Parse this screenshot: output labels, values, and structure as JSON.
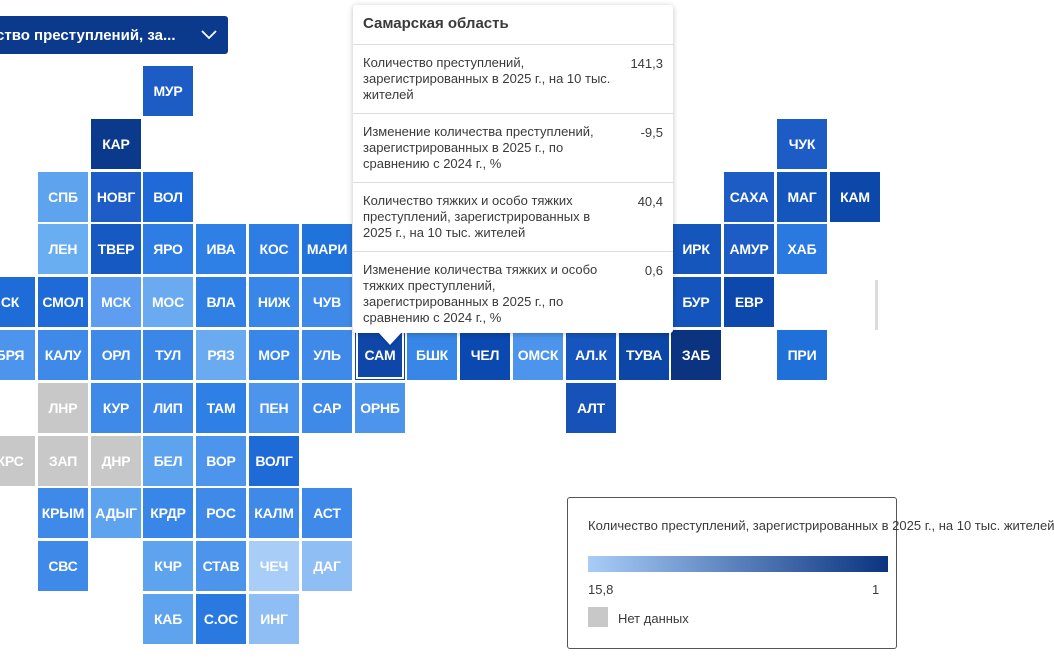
{
  "dropdown": {
    "label": "ство преступлений, за...",
    "icon": "chevron-down-icon"
  },
  "tooltip": {
    "title": "Самарская область",
    "rows": [
      {
        "label": "Количество преступлений, зарегистрированных в 2025 г., на 10 тыс. жителей",
        "value": "141,3"
      },
      {
        "label": "Изменение количества преступлений, зарегистрированных в 2025 г., по сравнению с 2024 г., %",
        "value": "-9,5"
      },
      {
        "label": "Количество тяжких и особо тяжких преступлений, зарегистрированных в 2025 г., на 10 тыс. жителей",
        "value": "40,4"
      },
      {
        "label": "Изменение количества тяжких и особо тяжких преступлений, зарегистрированных в 2025 г., по сравнению с 2024 г., %",
        "value": "0,6"
      }
    ]
  },
  "legend": {
    "title": "Количество преступлений, зарегистрированных в 2025 г., на 10 тыс. жителей",
    "min": "15,8",
    "max": "1",
    "no_data": "Нет данных",
    "colors": {
      "low": "#a8cdf7",
      "high": "#0b3380",
      "no_data": "#c8c8c8"
    }
  },
  "map": {
    "selected": "САМ",
    "regions": [
      {
        "code": "МУР",
        "col": 3,
        "row": 0,
        "color": "#1d5cc4"
      },
      {
        "code": "КАР",
        "col": 2,
        "row": 1,
        "color": "#0b3a8c"
      },
      {
        "code": "ЧУК",
        "col": 15,
        "row": 1,
        "color": "#1d5cc4"
      },
      {
        "code": "СПБ",
        "col": 1,
        "row": 2,
        "color": "#5ea3ee"
      },
      {
        "code": "НОВГ",
        "col": 2,
        "row": 2,
        "color": "#1e5dc7"
      },
      {
        "code": "ВОЛ",
        "col": 3,
        "row": 2,
        "color": "#1d6ad8"
      },
      {
        "code": "САХА",
        "col": 14,
        "row": 2,
        "color": "#1d5cc4"
      },
      {
        "code": "МАГ",
        "col": 15,
        "row": 2,
        "color": "#1556bd"
      },
      {
        "code": "КАМ",
        "col": 16,
        "row": 2,
        "color": "#0c48aa"
      },
      {
        "code": "ЛЕН",
        "col": 1,
        "row": 3,
        "color": "#6aaef2"
      },
      {
        "code": "ТВЕР",
        "col": 2,
        "row": 3,
        "color": "#1659c3"
      },
      {
        "code": "ЯРО",
        "col": 3,
        "row": 3,
        "color": "#2e7de4"
      },
      {
        "code": "ИВА",
        "col": 4,
        "row": 3,
        "color": "#2f80e6"
      },
      {
        "code": "КОС",
        "col": 5,
        "row": 3,
        "color": "#2e7de4"
      },
      {
        "code": "МАРИ",
        "col": 6,
        "row": 3,
        "color": "#2173dc"
      },
      {
        "code": "ИРК",
        "col": 13,
        "row": 3,
        "color": "#1556bd"
      },
      {
        "code": "АМУР",
        "col": 14,
        "row": 3,
        "color": "#1d5cc4"
      },
      {
        "code": "ХАБ",
        "col": 15,
        "row": 3,
        "color": "#2a79e0"
      },
      {
        "code": "СК",
        "col": 0,
        "row": 4,
        "color": "#1e6cd8"
      },
      {
        "code": "СМОЛ",
        "col": 1,
        "row": 4,
        "color": "#1e6ad7"
      },
      {
        "code": "МСК",
        "col": 2,
        "row": 4,
        "color": "#5e9def"
      },
      {
        "code": "МОС",
        "col": 3,
        "row": 4,
        "color": "#6aaaf0"
      },
      {
        "code": "ВЛА",
        "col": 4,
        "row": 4,
        "color": "#2f7fe5"
      },
      {
        "code": "НИЖ",
        "col": 5,
        "row": 4,
        "color": "#3886e8"
      },
      {
        "code": "ЧУВ",
        "col": 6,
        "row": 4,
        "color": "#3f8ae9"
      },
      {
        "code": "БУР",
        "col": 13,
        "row": 4,
        "color": "#1355bc"
      },
      {
        "code": "ЕВР",
        "col": 14,
        "row": 4,
        "color": "#0d48ac"
      },
      {
        "code": "БРЯ",
        "col": 0,
        "row": 5,
        "color": "#4d94ec"
      },
      {
        "code": "КАЛУ",
        "col": 1,
        "row": 5,
        "color": "#3f8ae9"
      },
      {
        "code": "ОРЛ",
        "col": 2,
        "row": 5,
        "color": "#3f8ae9"
      },
      {
        "code": "ТУЛ",
        "col": 3,
        "row": 5,
        "color": "#3a87e8"
      },
      {
        "code": "РЯЗ",
        "col": 4,
        "row": 5,
        "color": "#6aaaf0"
      },
      {
        "code": "МОР",
        "col": 5,
        "row": 5,
        "color": "#3886e8"
      },
      {
        "code": "УЛЬ",
        "col": 6,
        "row": 5,
        "color": "#3f8ae9"
      },
      {
        "code": "САМ",
        "col": 7,
        "row": 5,
        "color": "#0e47a8"
      },
      {
        "code": "БШК",
        "col": 8,
        "row": 5,
        "color": "#3886e8"
      },
      {
        "code": "ЧЕЛ",
        "col": 9,
        "row": 5,
        "color": "#0b48b0"
      },
      {
        "code": "ОМСК",
        "col": 10,
        "row": 5,
        "color": "#4d94ec"
      },
      {
        "code": "АЛ.К",
        "col": 11,
        "row": 5,
        "color": "#1655bd"
      },
      {
        "code": "ТУВА",
        "col": 12,
        "row": 5,
        "color": "#0c46a6"
      },
      {
        "code": "ЗАБ",
        "col": 13,
        "row": 5,
        "color": "#0b3380"
      },
      {
        "code": "ПРИ",
        "col": 15,
        "row": 5,
        "color": "#2070da"
      },
      {
        "code": "ЛНР",
        "col": 1,
        "row": 6,
        "color": "#c8c8c8"
      },
      {
        "code": "КУР",
        "col": 2,
        "row": 6,
        "color": "#3f8ae9"
      },
      {
        "code": "ЛИП",
        "col": 3,
        "row": 6,
        "color": "#3f8ae9"
      },
      {
        "code": "ТАМ",
        "col": 4,
        "row": 6,
        "color": "#2f80e6"
      },
      {
        "code": "ПЕН",
        "col": 5,
        "row": 6,
        "color": "#4d94ec"
      },
      {
        "code": "САР",
        "col": 6,
        "row": 6,
        "color": "#3f8ae9"
      },
      {
        "code": "ОРНБ",
        "col": 7,
        "row": 6,
        "color": "#4d94ec"
      },
      {
        "code": "АЛТ",
        "col": 11,
        "row": 6,
        "color": "#1652b8"
      },
      {
        "code": "КРС",
        "col": 0,
        "row": 7,
        "color": "#c8c8c8"
      },
      {
        "code": "ЗАП",
        "col": 1,
        "row": 7,
        "color": "#c8c8c8"
      },
      {
        "code": "ДНР",
        "col": 2,
        "row": 7,
        "color": "#c8c8c8"
      },
      {
        "code": "БЕЛ",
        "col": 3,
        "row": 7,
        "color": "#5ea3ee"
      },
      {
        "code": "ВОР",
        "col": 4,
        "row": 7,
        "color": "#4d94ec"
      },
      {
        "code": "ВОЛГ",
        "col": 5,
        "row": 7,
        "color": "#1e6ad7"
      },
      {
        "code": "КРЫМ",
        "col": 1,
        "row": 8,
        "color": "#3f8ae9"
      },
      {
        "code": "АДЫГ",
        "col": 2,
        "row": 8,
        "color": "#5ea3ee"
      },
      {
        "code": "КРДР",
        "col": 3,
        "row": 8,
        "color": "#3886e8"
      },
      {
        "code": "РОС",
        "col": 4,
        "row": 8,
        "color": "#3f8ae9"
      },
      {
        "code": "КАЛМ",
        "col": 5,
        "row": 8,
        "color": "#3f8ae9"
      },
      {
        "code": "АСТ",
        "col": 6,
        "row": 8,
        "color": "#3f8ae9"
      },
      {
        "code": "СВС",
        "col": 1,
        "row": 9,
        "color": "#3f8ae9"
      },
      {
        "code": "КЧР",
        "col": 3,
        "row": 9,
        "color": "#5ea3ee"
      },
      {
        "code": "СТАВ",
        "col": 4,
        "row": 9,
        "color": "#4d94ec"
      },
      {
        "code": "ЧЕЧ",
        "col": 5,
        "row": 9,
        "color": "#a8cdf7"
      },
      {
        "code": "ДАГ",
        "col": 6,
        "row": 9,
        "color": "#8fbef4"
      },
      {
        "code": "КАБ",
        "col": 3,
        "row": 10,
        "color": "#5ea3ee"
      },
      {
        "code": "С.ОС",
        "col": 4,
        "row": 10,
        "color": "#2a79e0"
      },
      {
        "code": "ИНГ",
        "col": 5,
        "row": 10,
        "color": "#8fbef4"
      }
    ]
  }
}
